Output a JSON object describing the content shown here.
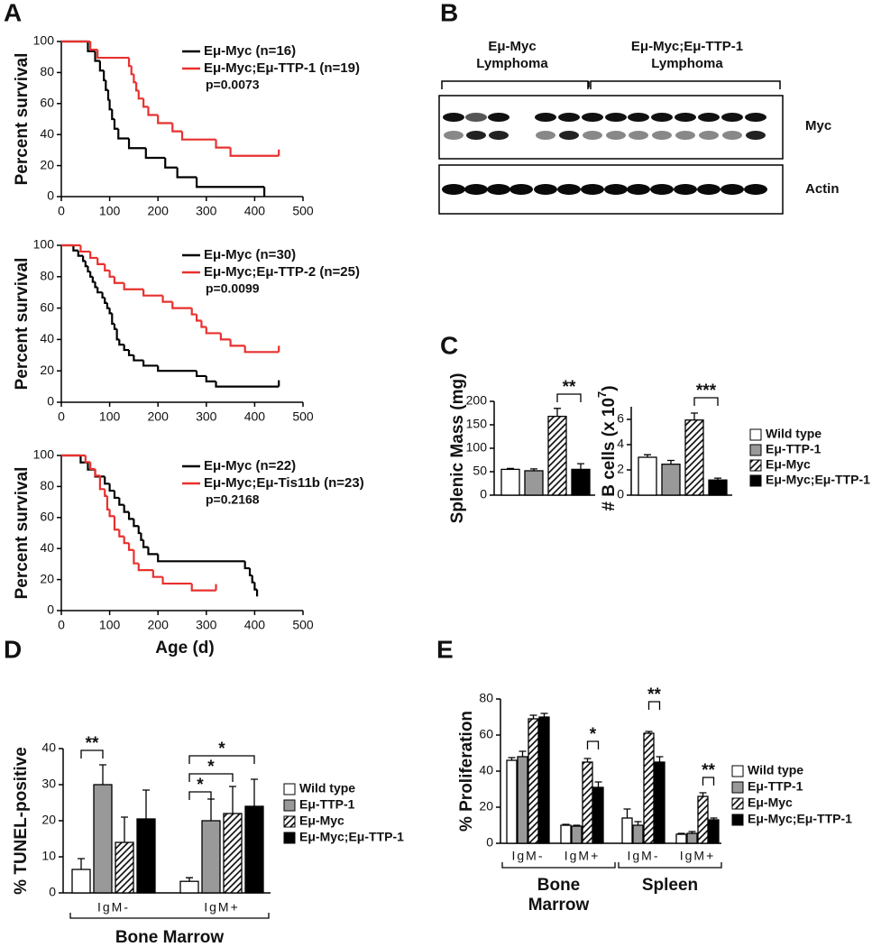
{
  "panel_labels": [
    "A",
    "B",
    "C",
    "D",
    "E"
  ],
  "blot": {
    "groups": [
      [
        "Eμ-Myc",
        "Lymphoma"
      ],
      [
        "Eμ-Myc;Eμ-TTP-1",
        "Lymphoma"
      ]
    ],
    "rows": [
      "Myc",
      "Actin"
    ]
  },
  "chart_data": [
    {
      "type": "line",
      "step": true,
      "ylabel": "Percent survival",
      "xlim": [
        0,
        500
      ],
      "xticks": [
        0,
        100,
        200,
        300,
        400,
        500
      ],
      "ylim": [
        0,
        100
      ],
      "yticks": [
        0,
        20,
        40,
        60,
        80,
        100
      ],
      "p_value": "p=0.0073",
      "series": [
        {
          "name": "Eμ-Myc (n=16)",
          "color": "#000000",
          "x": [
            0,
            55,
            70,
            80,
            88,
            92,
            97,
            100,
            105,
            110,
            118,
            140,
            175,
            215,
            240,
            280,
            420
          ],
          "values": [
            100,
            93.75,
            87.5,
            81.25,
            75,
            68.75,
            62.5,
            56.25,
            50,
            43.75,
            37.5,
            31.25,
            25,
            18.75,
            12.5,
            6.25,
            0
          ]
        },
        {
          "name": "Eμ-Myc;Eμ-TTP-1 (n=19)",
          "color": "#e8312f",
          "x": [
            0,
            60,
            75,
            140,
            145,
            150,
            155,
            160,
            170,
            180,
            200,
            230,
            250,
            320,
            350,
            450
          ],
          "values": [
            100,
            94.7,
            89.5,
            84.2,
            78.9,
            73.7,
            68.4,
            63.2,
            57.9,
            52.6,
            47.4,
            42.1,
            36.8,
            31.6,
            26.3,
            26.3
          ]
        }
      ]
    },
    {
      "type": "line",
      "step": true,
      "ylabel": "Percent survival",
      "xlim": [
        0,
        500
      ],
      "xticks": [
        0,
        100,
        200,
        300,
        400,
        500
      ],
      "ylim": [
        0,
        100
      ],
      "yticks": [
        0,
        20,
        40,
        60,
        80,
        100
      ],
      "p_value": "p=0.0099",
      "series": [
        {
          "name": "Eμ-Myc (n=30)",
          "color": "#000000",
          "x": [
            0,
            25,
            35,
            45,
            50,
            55,
            60,
            65,
            70,
            75,
            85,
            90,
            95,
            100,
            105,
            110,
            115,
            120,
            130,
            140,
            150,
            170,
            200,
            280,
            300,
            320,
            450
          ],
          "values": [
            100,
            96.7,
            93.3,
            90,
            86.7,
            83.3,
            80,
            76.7,
            73.3,
            70,
            66.7,
            63.3,
            60,
            56.7,
            50,
            46.7,
            40,
            36.7,
            33.3,
            30,
            26.7,
            23.3,
            20,
            16.7,
            13.3,
            10,
            10
          ]
        },
        {
          "name": "Eμ-Myc;Eμ-TTP-2 (n=25)",
          "color": "#e8312f",
          "x": [
            0,
            40,
            60,
            75,
            90,
            100,
            110,
            130,
            170,
            210,
            230,
            270,
            280,
            290,
            300,
            330,
            350,
            380,
            450
          ],
          "values": [
            100,
            96,
            92,
            88,
            84,
            80,
            76,
            72,
            68,
            64,
            60,
            56,
            52,
            48,
            44,
            40,
            36,
            32,
            32
          ]
        }
      ]
    },
    {
      "type": "line",
      "step": true,
      "ylabel": "Percent survival",
      "xlabel": "Age (d)",
      "xlim": [
        0,
        500
      ],
      "xticks": [
        0,
        100,
        200,
        300,
        400,
        500
      ],
      "ylim": [
        0,
        100
      ],
      "yticks": [
        0,
        20,
        40,
        60,
        80,
        100
      ],
      "p_value": "p=0.2168",
      "series": [
        {
          "name": "Eμ-Myc (n=22)",
          "color": "#000000",
          "x": [
            0,
            40,
            55,
            70,
            90,
            100,
            110,
            120,
            130,
            140,
            150,
            160,
            165,
            170,
            180,
            200,
            380,
            390,
            395,
            400,
            405
          ],
          "values": [
            100,
            95.5,
            90.9,
            86.4,
            81.8,
            77.3,
            72.7,
            68.2,
            63.6,
            59.1,
            54.5,
            50,
            45.5,
            40.9,
            36.4,
            31.8,
            27.3,
            22.7,
            18.2,
            13.6,
            9.1
          ]
        },
        {
          "name": "Eμ-Myc;Eμ-Tis11b (n=23)",
          "color": "#e8312f",
          "x": [
            0,
            50,
            60,
            70,
            80,
            90,
            95,
            100,
            110,
            120,
            130,
            140,
            150,
            160,
            190,
            210,
            270,
            320
          ],
          "values": [
            100,
            95.7,
            91.3,
            87,
            78.3,
            73.9,
            65.2,
            60.9,
            52.2,
            47.8,
            43.5,
            39.1,
            30.4,
            26.1,
            21.7,
            17.4,
            13,
            13
          ]
        }
      ]
    },
    {
      "type": "bar",
      "ylabel": "Splenic Mass (mg)",
      "ylim": [
        0,
        200
      ],
      "yticks": [
        0,
        50,
        100,
        150,
        200
      ],
      "annotations": [
        "**"
      ],
      "series": [
        {
          "color": "#ffffff",
          "values": [
            55
          ],
          "errors": [
            2
          ]
        },
        {
          "color": "#999999",
          "values": [
            52
          ],
          "errors": [
            4
          ]
        },
        {
          "color": "#ffffff",
          "hatch": true,
          "values": [
            168
          ],
          "errors": [
            17
          ]
        },
        {
          "color": "#000000",
          "values": [
            55
          ],
          "errors": [
            12
          ]
        }
      ]
    },
    {
      "type": "bar",
      "ylabel": [
        "# B cells (x 10",
        "7",
        ")"
      ],
      "ylim": [
        0,
        7
      ],
      "yticks": [
        0,
        2,
        4,
        6
      ],
      "annotations": [
        "***"
      ],
      "series": [
        {
          "name": "Wild type",
          "color": "#ffffff",
          "values": [
            3
          ],
          "errors": [
            0.2
          ]
        },
        {
          "name": "Eμ-TTP-1",
          "color": "#999999",
          "values": [
            2.45
          ],
          "errors": [
            0.3
          ]
        },
        {
          "name": "Eμ-Myc",
          "color": "#ffffff",
          "hatch": true,
          "values": [
            5.95
          ],
          "errors": [
            0.55
          ]
        },
        {
          "name": "Eμ-Myc;Eμ-TTP-1",
          "color": "#000000",
          "values": [
            1.2
          ],
          "errors": [
            0.15
          ]
        }
      ]
    },
    {
      "type": "bar",
      "ylabel": "% TUNEL-positive",
      "categories": [
        "IgM-",
        "IgM+"
      ],
      "group_label": "Bone Marrow",
      "ylim": [
        0,
        40
      ],
      "yticks": [
        0,
        10,
        20,
        30,
        40
      ],
      "annotations": [
        "**",
        "*",
        "*",
        "*"
      ],
      "series": [
        {
          "name": "Wild type",
          "color": "#ffffff",
          "values": [
            6.5,
            3.2
          ],
          "errors": [
            3,
            1
          ]
        },
        {
          "name": "Eμ-TTP-1",
          "color": "#999999",
          "values": [
            30,
            20
          ],
          "errors": [
            5.5,
            6
          ]
        },
        {
          "name": "Eμ-Myc",
          "color": "#ffffff",
          "hatch": true,
          "values": [
            14,
            22
          ],
          "errors": [
            7,
            7.5
          ]
        },
        {
          "name": "Eμ-Myc;Eμ-TTP-1",
          "color": "#000000",
          "values": [
            20.5,
            24
          ],
          "errors": [
            8,
            7.5
          ]
        }
      ]
    },
    {
      "type": "bar",
      "ylabel": "% Proliferation",
      "categories": [
        "IgM-",
        "IgM+",
        "IgM-",
        "IgM+"
      ],
      "groups": [
        [
          "Bone",
          "Marrow"
        ],
        [
          "Spleen"
        ]
      ],
      "ylim": [
        0,
        80
      ],
      "yticks": [
        0,
        20,
        40,
        60,
        80
      ],
      "annotations": [
        "*",
        "**",
        "**"
      ],
      "series": [
        {
          "name": "Wild type",
          "color": "#ffffff",
          "values": [
            46,
            10,
            14,
            5
          ],
          "errors": [
            1.5,
            0.5,
            5,
            0.5
          ]
        },
        {
          "name": "Eμ-TTP-1",
          "color": "#999999",
          "values": [
            48,
            9.5,
            10,
            5.5
          ],
          "errors": [
            3,
            0.5,
            2,
            1
          ]
        },
        {
          "name": "Eμ-Myc",
          "color": "#ffffff",
          "hatch": true,
          "values": [
            69,
            45,
            61,
            26
          ],
          "errors": [
            2,
            2,
            1,
            2
          ]
        },
        {
          "name": "Eμ-Myc;Eμ-TTP-1",
          "color": "#000000",
          "values": [
            70,
            31,
            45,
            13
          ],
          "errors": [
            2,
            3,
            3,
            1
          ]
        }
      ]
    }
  ]
}
